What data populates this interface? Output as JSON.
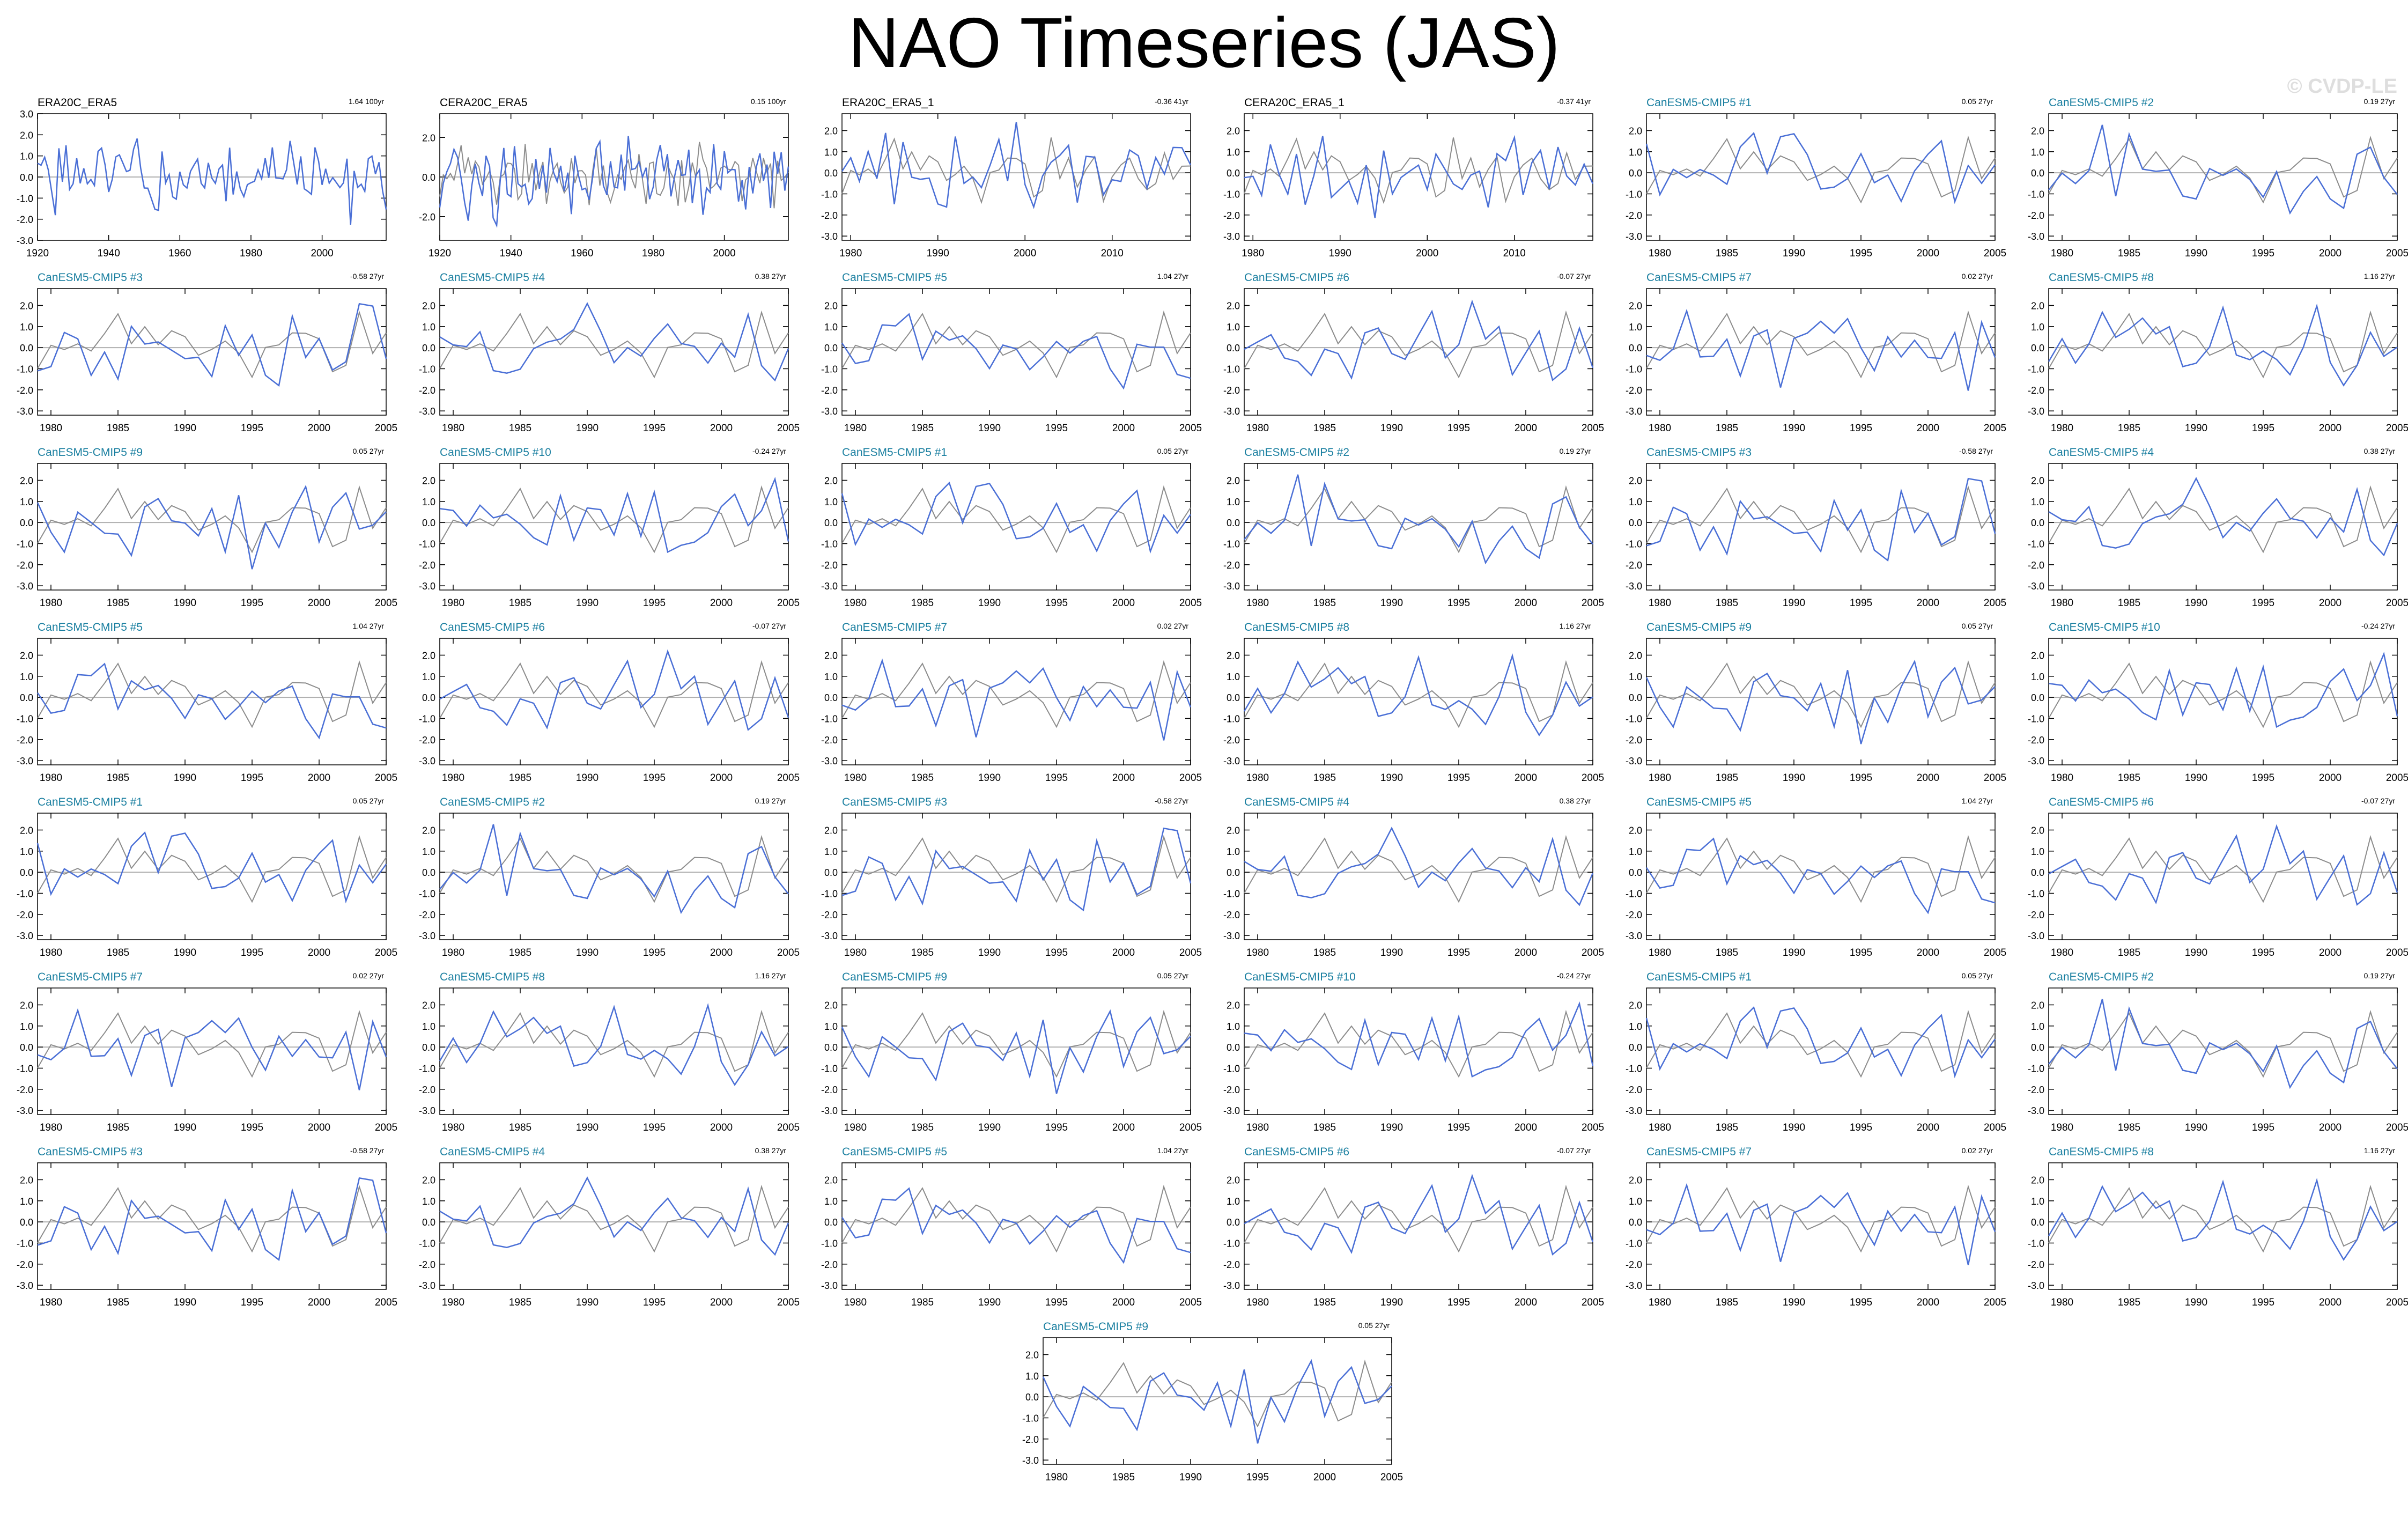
{
  "title": "NAO Timeseries (JAS)",
  "watermark": "© CVDP-LE",
  "colors": {
    "model": "#4a6fd6",
    "obs": "#8c8c8c",
    "title_obs": "#000000",
    "title_model": "#1a7fa0",
    "zero": "#b0b0b0"
  },
  "chart_data": [
    {
      "type": "line",
      "title": "ERA20C_ERA5",
      "trend": "1.64 100yr",
      "title_color": "obs",
      "x_range": [
        1920,
        2018
      ],
      "xticks": [
        "1920",
        "1940",
        "1960",
        "1980",
        "2000"
      ],
      "yticks": [
        "3.0",
        "2.0",
        "1.0",
        "0.0",
        "-1.0",
        "-2.0",
        "-3.0"
      ],
      "ylim": [
        -3,
        3
      ],
      "seed": 1,
      "obs": false
    },
    {
      "type": "line",
      "title": "CERA20C_ERA5",
      "trend": "0.15 100yr",
      "title_color": "obs",
      "x_range": [
        1920,
        2018
      ],
      "xticks": [
        "1920",
        "1940",
        "1960",
        "1980",
        "2000"
      ],
      "yticks": [
        "2.0",
        "0.0",
        "-2.0"
      ],
      "ylim": [
        -3.2,
        3.2
      ],
      "seed": 2,
      "obs": true
    },
    {
      "type": "line",
      "title": "ERA20C_ERA5_1",
      "trend": "-0.36 41yr",
      "title_color": "obs",
      "x_range": [
        1979,
        2019
      ],
      "xticks": [
        "1980",
        "1990",
        "2000",
        "2010"
      ],
      "yticks": [
        "2.0",
        "1.0",
        "0.0",
        "-1.0",
        "-2.0",
        "-3.0"
      ],
      "ylim": [
        -3.2,
        2.8
      ],
      "seed": 3,
      "obs": true
    },
    {
      "type": "line",
      "title": "CERA20C_ERA5_1",
      "trend": "-0.37 41yr",
      "title_color": "obs",
      "x_range": [
        1979,
        2019
      ],
      "xticks": [
        "1980",
        "1990",
        "2000",
        "2010"
      ],
      "yticks": [
        "2.0",
        "1.0",
        "0.0",
        "-1.0",
        "-2.0",
        "-3.0"
      ],
      "ylim": [
        -3.2,
        2.8
      ],
      "seed": 4,
      "obs": true
    },
    {
      "type": "line",
      "title": "CanESM5-CMIP5 #1",
      "trend": "0.05 27yr",
      "title_color": "model",
      "seed": 5
    },
    {
      "type": "line",
      "title": "CanESM5-CMIP5 #2",
      "trend": "0.19 27yr",
      "title_color": "model",
      "seed": 6
    },
    {
      "type": "line",
      "title": "CanESM5-CMIP5 #3",
      "trend": "-0.58 27yr",
      "title_color": "model",
      "seed": 7
    },
    {
      "type": "line",
      "title": "CanESM5-CMIP5 #4",
      "trend": "0.38 27yr",
      "title_color": "model",
      "seed": 8
    },
    {
      "type": "line",
      "title": "CanESM5-CMIP5 #5",
      "trend": "1.04 27yr",
      "title_color": "model",
      "seed": 9
    },
    {
      "type": "line",
      "title": "CanESM5-CMIP5 #6",
      "trend": "-0.07 27yr",
      "title_color": "model",
      "seed": 10
    },
    {
      "type": "line",
      "title": "CanESM5-CMIP5 #7",
      "trend": "0.02 27yr",
      "title_color": "model",
      "seed": 11
    },
    {
      "type": "line",
      "title": "CanESM5-CMIP5 #8",
      "trend": "1.16 27yr",
      "title_color": "model",
      "seed": 12
    },
    {
      "type": "line",
      "title": "CanESM5-CMIP5 #9",
      "trend": "0.05 27yr",
      "title_color": "model",
      "seed": 13
    },
    {
      "type": "line",
      "title": "CanESM5-CMIP5 #10",
      "trend": "-0.24 27yr",
      "title_color": "model",
      "seed": 14
    },
    {
      "type": "line",
      "title": "CanESM5-CMIP5 #1",
      "trend": "0.05 27yr",
      "title_color": "model",
      "seed": 5
    },
    {
      "type": "line",
      "title": "CanESM5-CMIP5 #2",
      "trend": "0.19 27yr",
      "title_color": "model",
      "seed": 6
    },
    {
      "type": "line",
      "title": "CanESM5-CMIP5 #3",
      "trend": "-0.58 27yr",
      "title_color": "model",
      "seed": 7
    },
    {
      "type": "line",
      "title": "CanESM5-CMIP5 #4",
      "trend": "0.38 27yr",
      "title_color": "model",
      "seed": 8
    },
    {
      "type": "line",
      "title": "CanESM5-CMIP5 #5",
      "trend": "1.04 27yr",
      "title_color": "model",
      "seed": 9
    },
    {
      "type": "line",
      "title": "CanESM5-CMIP5 #6",
      "trend": "-0.07 27yr",
      "title_color": "model",
      "seed": 10
    },
    {
      "type": "line",
      "title": "CanESM5-CMIP5 #7",
      "trend": "0.02 27yr",
      "title_color": "model",
      "seed": 11
    },
    {
      "type": "line",
      "title": "CanESM5-CMIP5 #8",
      "trend": "1.16 27yr",
      "title_color": "model",
      "seed": 12
    },
    {
      "type": "line",
      "title": "CanESM5-CMIP5 #9",
      "trend": "0.05 27yr",
      "title_color": "model",
      "seed": 13
    },
    {
      "type": "line",
      "title": "CanESM5-CMIP5 #10",
      "trend": "-0.24 27yr",
      "title_color": "model",
      "seed": 14
    },
    {
      "type": "line",
      "title": "CanESM5-CMIP5 #1",
      "trend": "0.05 27yr",
      "title_color": "model",
      "seed": 5
    },
    {
      "type": "line",
      "title": "CanESM5-CMIP5 #2",
      "trend": "0.19 27yr",
      "title_color": "model",
      "seed": 6
    },
    {
      "type": "line",
      "title": "CanESM5-CMIP5 #3",
      "trend": "-0.58 27yr",
      "title_color": "model",
      "seed": 7
    },
    {
      "type": "line",
      "title": "CanESM5-CMIP5 #4",
      "trend": "0.38 27yr",
      "title_color": "model",
      "seed": 8
    },
    {
      "type": "line",
      "title": "CanESM5-CMIP5 #5",
      "trend": "1.04 27yr",
      "title_color": "model",
      "seed": 9
    },
    {
      "type": "line",
      "title": "CanESM5-CMIP5 #6",
      "trend": "-0.07 27yr",
      "title_color": "model",
      "seed": 10
    },
    {
      "type": "line",
      "title": "CanESM5-CMIP5 #7",
      "trend": "0.02 27yr",
      "title_color": "model",
      "seed": 11
    },
    {
      "type": "line",
      "title": "CanESM5-CMIP5 #8",
      "trend": "1.16 27yr",
      "title_color": "model",
      "seed": 12
    },
    {
      "type": "line",
      "title": "CanESM5-CMIP5 #9",
      "trend": "0.05 27yr",
      "title_color": "model",
      "seed": 13
    },
    {
      "type": "line",
      "title": "CanESM5-CMIP5 #10",
      "trend": "-0.24 27yr",
      "title_color": "model",
      "seed": 14
    },
    {
      "type": "line",
      "title": "CanESM5-CMIP5 #1",
      "trend": "0.05 27yr",
      "title_color": "model",
      "seed": 5
    },
    {
      "type": "line",
      "title": "CanESM5-CMIP5 #2",
      "trend": "0.19 27yr",
      "title_color": "model",
      "seed": 6
    },
    {
      "type": "line",
      "title": "CanESM5-CMIP5 #3",
      "trend": "-0.58 27yr",
      "title_color": "model",
      "seed": 7
    },
    {
      "type": "line",
      "title": "CanESM5-CMIP5 #4",
      "trend": "0.38 27yr",
      "title_color": "model",
      "seed": 8
    },
    {
      "type": "line",
      "title": "CanESM5-CMIP5 #5",
      "trend": "1.04 27yr",
      "title_color": "model",
      "seed": 9
    },
    {
      "type": "line",
      "title": "CanESM5-CMIP5 #6",
      "trend": "-0.07 27yr",
      "title_color": "model",
      "seed": 10
    },
    {
      "type": "line",
      "title": "CanESM5-CMIP5 #7",
      "trend": "0.02 27yr",
      "title_color": "model",
      "seed": 11
    },
    {
      "type": "line",
      "title": "CanESM5-CMIP5 #8",
      "trend": "1.16 27yr",
      "title_color": "model",
      "seed": 12
    },
    {
      "type": "line",
      "title": "CanESM5-CMIP5 #9",
      "trend": "0.05 27yr",
      "title_color": "model",
      "seed": 13
    }
  ],
  "model_defaults": {
    "x_range": [
      1979,
      2005
    ],
    "xticks": [
      "1980",
      "1985",
      "1990",
      "1995",
      "2000",
      "2005"
    ],
    "yticks": [
      "2.0",
      "1.0",
      "0.0",
      "-1.0",
      "-2.0",
      "-3.0"
    ],
    "ylim": [
      -3.2,
      2.8
    ]
  }
}
